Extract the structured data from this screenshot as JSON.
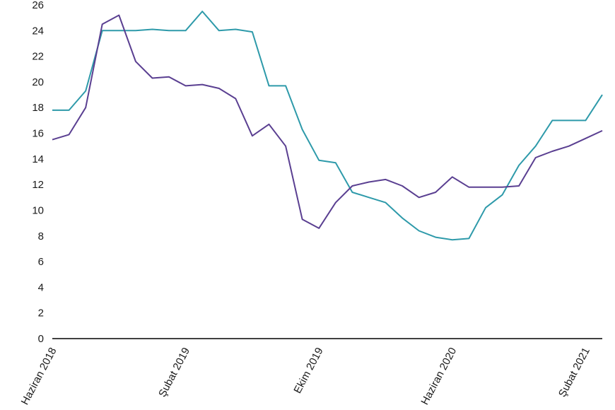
{
  "chart_data": {
    "type": "line",
    "title": "",
    "xlabel": "",
    "ylabel": "",
    "ylim": [
      0,
      26
    ],
    "yticks": [
      0,
      2,
      4,
      6,
      8,
      10,
      12,
      14,
      16,
      18,
      20,
      22,
      24,
      26
    ],
    "grid": false,
    "legend": "none",
    "x": [
      "2018-06",
      "2018-07",
      "2018-08",
      "2018-09",
      "2018-10",
      "2018-11",
      "2018-12",
      "2019-01",
      "2019-02",
      "2019-03",
      "2019-04",
      "2019-05",
      "2019-06",
      "2019-07",
      "2019-08",
      "2019-09",
      "2019-10",
      "2019-11",
      "2019-12",
      "2020-01",
      "2020-02",
      "2020-03",
      "2020-04",
      "2020-05",
      "2020-06",
      "2020-07",
      "2020-08",
      "2020-09",
      "2020-10",
      "2020-11",
      "2020-12",
      "2021-01",
      "2021-02",
      "2021-03"
    ],
    "xtick_labels": [
      {
        "index": 0,
        "label": "Haziran 2018"
      },
      {
        "index": 8,
        "label": "Şubat 2019"
      },
      {
        "index": 16,
        "label": "Ekim 2019"
      },
      {
        "index": 24,
        "label": "Haziran 2020"
      },
      {
        "index": 32,
        "label": "Şubat 2021"
      }
    ],
    "series": [
      {
        "color": "#2e9aaa",
        "values": [
          17.8,
          17.8,
          19.3,
          24.0,
          24.0,
          24.0,
          24.1,
          24.0,
          24.0,
          25.5,
          24.0,
          24.1,
          23.9,
          19.7,
          19.7,
          16.3,
          13.9,
          13.7,
          11.4,
          11.0,
          10.6,
          9.4,
          8.4,
          7.9,
          7.7,
          7.8,
          10.2,
          11.2,
          13.5,
          15.0,
          17.0,
          17.0,
          17.0,
          19.0
        ]
      },
      {
        "color": "#5a3f91",
        "values": [
          15.5,
          15.9,
          18.0,
          24.5,
          25.2,
          21.6,
          20.3,
          20.4,
          19.7,
          19.8,
          19.5,
          18.7,
          15.8,
          16.7,
          15.0,
          9.3,
          8.6,
          10.6,
          11.9,
          12.2,
          12.4,
          11.9,
          11.0,
          11.4,
          12.6,
          11.8,
          11.8,
          11.8,
          11.9,
          14.1,
          14.6,
          15.0,
          15.6,
          16.2
        ]
      }
    ]
  }
}
